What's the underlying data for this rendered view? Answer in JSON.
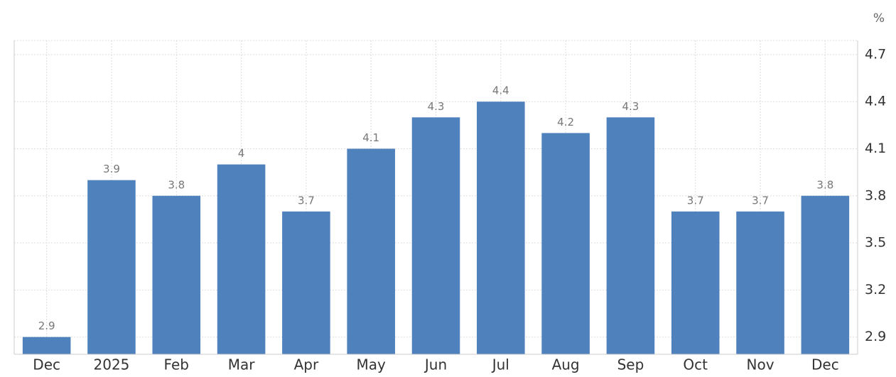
{
  "chart_data": {
    "type": "bar",
    "unit": "%",
    "categories": [
      "Dec",
      "2025",
      "Feb",
      "Mar",
      "Apr",
      "May",
      "Jun",
      "Jul",
      "Aug",
      "Sep",
      "Oct",
      "Nov",
      "Dec"
    ],
    "values": [
      2.9,
      3.9,
      3.8,
      4,
      3.7,
      4.1,
      4.3,
      4.4,
      4.2,
      4.3,
      3.7,
      3.7,
      3.8
    ],
    "color": "#4f81bd",
    "ylim": [
      2.79,
      4.79
    ],
    "yticks": [
      2.9,
      3.2,
      3.5,
      3.8,
      4.1,
      4.4,
      4.7
    ],
    "grid": true
  }
}
